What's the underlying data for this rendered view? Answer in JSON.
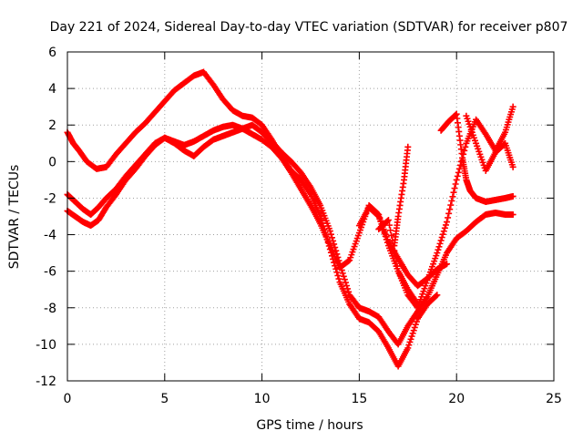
{
  "chart_data": {
    "type": "scatter",
    "title": "Day 221 of 2024, Sidereal Day-to-day VTEC variation (SDTVAR) for receiver p807",
    "xlabel": "GPS time / hours",
    "ylabel": "SDTVAR / TECUs",
    "xlim": [
      0,
      25
    ],
    "ylim": [
      -12,
      6
    ],
    "xticks": [
      0,
      5,
      10,
      15,
      20,
      25
    ],
    "yticks": [
      -12,
      -10,
      -8,
      -6,
      -4,
      -2,
      0,
      2,
      4,
      6
    ],
    "grid": true,
    "marker": "+",
    "color": "#ff0000",
    "series": [
      {
        "x": [
          0.0,
          0.3,
          0.6,
          1.0,
          1.5,
          2.0,
          2.5,
          3.0,
          3.5,
          4.0,
          4.5,
          5.0,
          5.5,
          6.0,
          6.5,
          7.0,
          7.5,
          8.0,
          8.5,
          9.0,
          9.5,
          10.0,
          10.5,
          11.0,
          11.5,
          12.0,
          12.5,
          13.0,
          13.5,
          14.0,
          14.5,
          15.0,
          15.5,
          16.0,
          16.5,
          17.0,
          17.5,
          18.0,
          18.5,
          19.0
        ],
        "y": [
          1.6,
          1.0,
          0.6,
          0.0,
          -0.4,
          -0.3,
          0.4,
          1.0,
          1.6,
          2.1,
          2.7,
          3.3,
          3.9,
          4.3,
          4.7,
          4.9,
          4.2,
          3.4,
          2.8,
          2.5,
          2.4,
          2.0,
          1.2,
          0.3,
          -0.5,
          -1.0,
          -1.8,
          -3.0,
          -4.8,
          -6.6,
          -7.8,
          -8.6,
          -8.8,
          -9.3,
          -10.2,
          -11.2,
          -10.2,
          -8.6,
          -7.8,
          -7.3
        ]
      },
      {
        "x": [
          0.0,
          0.4,
          0.8,
          1.2,
          1.6,
          2.0,
          2.5,
          3.0,
          3.5,
          4.0,
          4.5,
          5.0,
          5.5,
          6.0,
          6.5,
          7.0,
          7.5,
          8.0,
          8.5,
          9.0,
          9.5,
          10.0,
          10.5,
          11.0,
          11.5,
          12.0,
          12.5,
          13.0,
          13.5,
          14.0,
          14.5,
          15.0,
          15.5,
          16.0,
          16.5,
          17.0,
          17.5,
          18.0,
          18.5,
          19.0,
          19.5,
          20.0,
          20.5,
          21.0,
          21.5,
          22.0,
          22.5,
          22.9
        ],
        "y": [
          -2.7,
          -3.0,
          -3.3,
          -3.5,
          -3.2,
          -2.5,
          -1.8,
          -1.0,
          -0.4,
          0.3,
          0.9,
          1.3,
          1.0,
          0.6,
          0.3,
          0.8,
          1.2,
          1.4,
          1.6,
          1.8,
          2.0,
          1.6,
          1.1,
          0.5,
          0.0,
          -0.6,
          -1.4,
          -2.4,
          -3.8,
          -5.6,
          -7.3,
          -8.0,
          -8.2,
          -8.5,
          -9.3,
          -10.0,
          -9.0,
          -8.2,
          -7.4,
          -6.2,
          -5.0,
          -4.2,
          -3.8,
          -3.3,
          -2.9,
          -2.8,
          -2.9,
          -2.9
        ]
      },
      {
        "x": [
          0.0,
          0.4,
          0.8,
          1.2,
          1.6,
          2.0,
          2.5,
          3.0,
          3.5,
          4.0,
          4.5,
          5.0,
          5.5,
          6.0,
          6.5,
          7.0,
          7.5,
          8.0,
          8.5,
          9.0,
          9.5,
          10.0,
          10.5,
          11.0,
          11.5,
          12.0,
          12.5,
          13.0,
          13.5,
          14.0,
          14.5,
          15.0,
          15.5,
          16.0,
          16.5,
          17.0,
          17.5,
          18.0
        ],
        "y": [
          -1.8,
          -2.2,
          -2.6,
          -2.9,
          -2.5,
          -2.0,
          -1.5,
          -0.8,
          -0.2,
          0.4,
          1.0,
          1.3,
          1.1,
          0.9,
          1.1,
          1.4,
          1.7,
          1.9,
          2.0,
          1.8,
          1.5,
          1.2,
          0.8,
          0.2,
          -0.6,
          -1.5,
          -2.4,
          -3.4,
          -4.6,
          -5.8,
          -5.4,
          -3.9,
          -2.4,
          -2.9,
          -4.6,
          -6.0,
          -7.0,
          -7.8
        ]
      },
      {
        "x": [
          15.0,
          15.5,
          16.0,
          16.5,
          17.0,
          17.5,
          18.0,
          18.5,
          19.0,
          19.5
        ],
        "y": [
          -3.5,
          -2.5,
          -3.0,
          -4.4,
          -5.3,
          -6.2,
          -6.8,
          -6.4,
          -5.9,
          -5.6
        ]
      },
      {
        "x": [
          16.0,
          16.5,
          17.0,
          17.5,
          18.0,
          18.5,
          19.0,
          19.5,
          20.0,
          20.5,
          21.0,
          21.5,
          22.0,
          22.5,
          22.9
        ],
        "y": [
          -3.7,
          -3.2,
          -6.0,
          -7.3,
          -8.0,
          -6.5,
          -5.0,
          -3.3,
          -1.0,
          1.0,
          2.3,
          1.5,
          0.6,
          1.6,
          3.0
        ]
      },
      {
        "x": [
          19.2,
          19.6,
          20.0,
          20.3,
          20.5,
          20.7,
          21.0,
          21.5,
          22.0,
          22.5,
          22.9
        ],
        "y": [
          1.7,
          2.2,
          2.6,
          0.2,
          -1.0,
          -1.6,
          -2.0,
          -2.2,
          -2.1,
          -2.0,
          -1.9
        ]
      },
      {
        "x": [
          20.5,
          21.0,
          21.5,
          22.0,
          22.5,
          22.9
        ],
        "y": [
          2.5,
          1.0,
          -0.5,
          0.5,
          1.0,
          -0.3
        ]
      },
      {
        "x": [
          17.5,
          17.3,
          17.0,
          16.8
        ],
        "y": [
          0.8,
          -1.0,
          -3.0,
          -4.6
        ]
      }
    ]
  }
}
